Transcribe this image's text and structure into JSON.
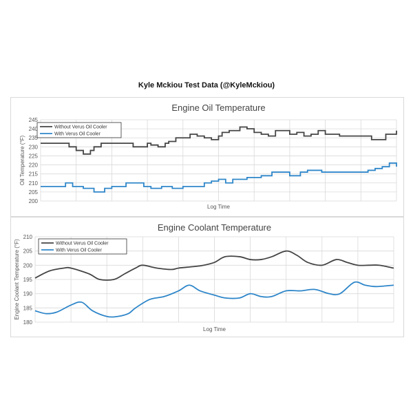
{
  "page_title": "Kyle Mckiou Test Data (@KyleMckiou)",
  "colors": {
    "without": "#444444",
    "with": "#2e86c9",
    "grid": "#d9d9d9"
  },
  "chart_data": [
    {
      "type": "line",
      "title": "Engine Oil Temperature",
      "xlabel": "Log Time",
      "ylabel": "Oil Temperature (°F)",
      "ylim": [
        200,
        245
      ],
      "yticks": [
        "200",
        "205",
        "210",
        "215",
        "220",
        "225",
        "230",
        "235",
        "240",
        "245"
      ],
      "grid": true,
      "legend_position": "top-left",
      "step": true,
      "series": [
        {
          "name": "Without Verus Oil Cooler",
          "color": "#444444",
          "x": [
            0,
            0.07,
            0.08,
            0.1,
            0.11,
            0.12,
            0.14,
            0.15,
            0.17,
            0.22,
            0.26,
            0.28,
            0.3,
            0.31,
            0.33,
            0.35,
            0.36,
            0.38,
            0.42,
            0.44,
            0.46,
            0.48,
            0.5,
            0.51,
            0.53,
            0.56,
            0.58,
            0.6,
            0.62,
            0.64,
            0.66,
            0.7,
            0.72,
            0.74,
            0.76,
            0.78,
            0.8,
            0.84,
            0.88,
            0.93,
            0.95,
            0.97,
            1.0
          ],
          "y": [
            232,
            232,
            230,
            228,
            228,
            226,
            228,
            230,
            232,
            232,
            230,
            230,
            232,
            231,
            230,
            232,
            233,
            235,
            237,
            236,
            235,
            234,
            236,
            238,
            239,
            241,
            240,
            238,
            237,
            236,
            239,
            237,
            238,
            236,
            237,
            239,
            237,
            236,
            236,
            234,
            234,
            237,
            239
          ]
        },
        {
          "name": "With Verus Oil Cooler",
          "color": "#2e86c9",
          "x": [
            0,
            0.05,
            0.07,
            0.09,
            0.12,
            0.15,
            0.18,
            0.2,
            0.24,
            0.25,
            0.29,
            0.31,
            0.34,
            0.37,
            0.4,
            0.43,
            0.46,
            0.48,
            0.5,
            0.52,
            0.54,
            0.56,
            0.58,
            0.62,
            0.65,
            0.68,
            0.7,
            0.73,
            0.75,
            0.77,
            0.79,
            0.83,
            0.88,
            0.92,
            0.94,
            0.96,
            0.98,
            1.0
          ],
          "y": [
            208,
            208,
            210,
            208,
            207,
            205,
            207,
            208,
            210,
            210,
            208,
            207,
            208,
            207,
            208,
            208,
            210,
            211,
            212,
            210,
            212,
            212,
            213,
            214,
            216,
            216,
            214,
            216,
            217,
            217,
            216,
            216,
            216,
            217,
            218,
            219,
            221,
            219
          ]
        }
      ]
    },
    {
      "type": "line",
      "title": "Engine Coolant Temperature",
      "xlabel": "Log Time",
      "ylabel": "Engine Coolant Temperature (°F)",
      "ylim": [
        180,
        210
      ],
      "yticks": [
        "180",
        "185",
        "190",
        "195",
        "200",
        "205",
        "210"
      ],
      "grid": true,
      "legend_position": "top-left",
      "step": false,
      "series": [
        {
          "name": "Without Verus Oil Cooler",
          "color": "#444444",
          "x": [
            0,
            0.04,
            0.08,
            0.1,
            0.15,
            0.18,
            0.22,
            0.25,
            0.28,
            0.3,
            0.34,
            0.38,
            0.4,
            0.44,
            0.47,
            0.5,
            0.53,
            0.57,
            0.6,
            0.63,
            0.66,
            0.7,
            0.73,
            0.76,
            0.8,
            0.84,
            0.87,
            0.9,
            0.93,
            0.96,
            1.0
          ],
          "y": [
            195.5,
            198,
            199,
            199,
            197,
            195,
            195,
            197,
            199,
            200,
            199,
            198.5,
            199,
            199.5,
            200,
            201,
            203,
            203,
            202,
            202,
            203,
            205,
            203.5,
            201,
            200,
            202,
            201,
            200,
            200,
            200,
            199
          ]
        },
        {
          "name": "With Verus Oil Cooler",
          "color": "#2e86c9",
          "x": [
            0,
            0.03,
            0.06,
            0.1,
            0.13,
            0.16,
            0.2,
            0.23,
            0.26,
            0.28,
            0.32,
            0.36,
            0.4,
            0.43,
            0.46,
            0.5,
            0.53,
            0.57,
            0.6,
            0.63,
            0.66,
            0.7,
            0.74,
            0.78,
            0.82,
            0.85,
            0.89,
            0.92,
            0.95,
            1.0
          ],
          "y": [
            184,
            183,
            183.5,
            186,
            187,
            184,
            182,
            182,
            183,
            185,
            188,
            189,
            191,
            193,
            191,
            189.5,
            188.5,
            188.5,
            190,
            189,
            189,
            191,
            191,
            191.5,
            190,
            190,
            194,
            193,
            192.5,
            193
          ]
        }
      ]
    }
  ]
}
